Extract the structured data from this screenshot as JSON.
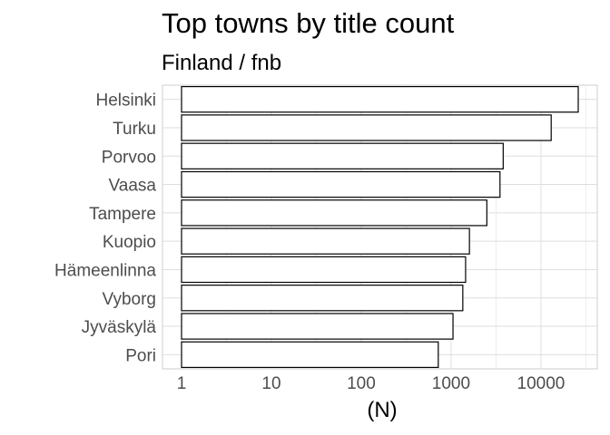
{
  "chart_data": {
    "type": "bar",
    "orientation": "horizontal",
    "title": "Top towns by title count",
    "subtitle": "Finland / fnb",
    "xlabel": "(N)",
    "ylabel": "",
    "x_scale": "log10",
    "xlim": [
      1,
      40000
    ],
    "x_ticks": [
      1,
      10,
      100,
      1000,
      10000
    ],
    "x_tick_labels": [
      "1",
      "10",
      "100",
      "1000",
      "10000"
    ],
    "grid": true,
    "bar_fill": "#ffffff",
    "bar_stroke": "#000000",
    "grid_color": "#dedede",
    "categories": [
      "Helsinki",
      "Turku",
      "Porvoo",
      "Vaasa",
      "Tampere",
      "Kuopio",
      "Hämeenlinna",
      "Vyborg",
      "Jyväskylä",
      "Pori"
    ],
    "values": [
      26000,
      13000,
      3800,
      3500,
      2500,
      1600,
      1450,
      1350,
      1050,
      720
    ]
  }
}
